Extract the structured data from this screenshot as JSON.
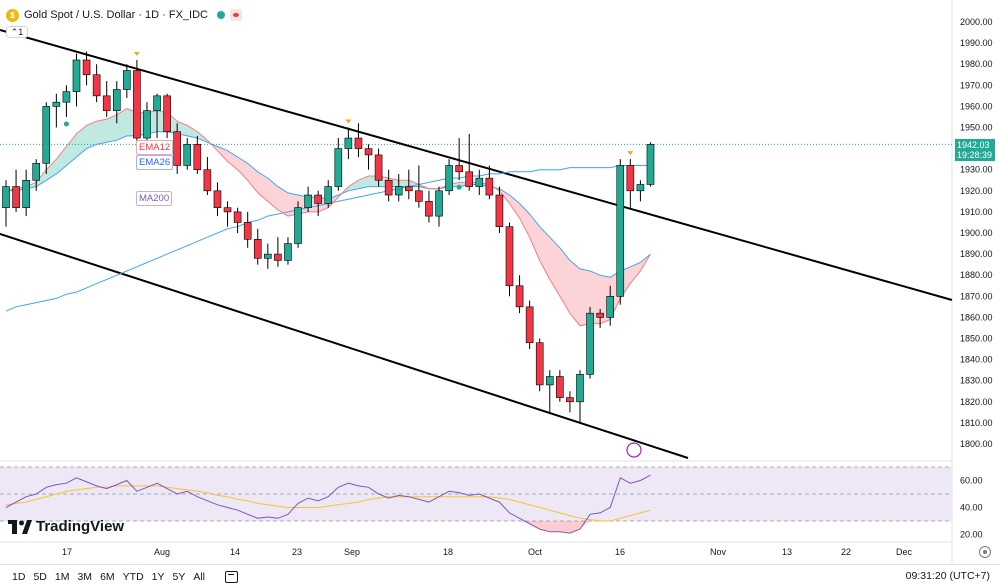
{
  "header": {
    "symbol_title": "Gold Spot / U.S. Dollar · 1D · FX_IDC",
    "collapse_label": "1"
  },
  "studies": {
    "ema12": "EMA12",
    "ema26": "EMA26",
    "ma200": "MA200"
  },
  "colors": {
    "up": "#22ab94",
    "down": "#f23645",
    "ema12": "#f77c80",
    "ema26": "#42a5f5",
    "ma200": "#42a5f5",
    "rsi": "#7e57c2",
    "rsi_ma": "#f7c52b",
    "rsi_band": "#ede7f6"
  },
  "price_tag": {
    "price": "1942.03",
    "countdown": "19:28:39"
  },
  "chart_data": {
    "type": "candlestick",
    "price_axis": {
      "ticks": [
        2000,
        1990,
        1980,
        1970,
        1960,
        1950,
        1940,
        1930,
        1920,
        1910,
        1900,
        1890,
        1880,
        1870,
        1860,
        1850,
        1840,
        1830,
        1820,
        1810,
        1800
      ],
      "labels": [
        "2000.00",
        "1990.00",
        "1980.00",
        "1970.00",
        "1960.00",
        "1950.00",
        "1940.00",
        "1930.00",
        "1920.00",
        "1910.00",
        "1900.00",
        "1890.00",
        "1880.00",
        "1870.00",
        "1860.00",
        "1850.00",
        "1840.00",
        "1830.00",
        "1820.00",
        "1810.00",
        "1800.00"
      ]
    },
    "rsi_axis": {
      "ticks": [
        60,
        40,
        20
      ],
      "labels": [
        "60.00",
        "40.00",
        "20.00"
      ],
      "upper_band": 70,
      "lower_band": 30
    },
    "time_axis": [
      "17",
      "Aug",
      "14",
      "23",
      "Sep",
      "18",
      "Oct",
      "16",
      "Nov",
      "13",
      "22",
      "Dec"
    ],
    "candles": [
      {
        "o": 1912,
        "h": 1925,
        "l": 1903,
        "c": 1922
      },
      {
        "o": 1922,
        "h": 1930,
        "l": 1910,
        "c": 1912
      },
      {
        "o": 1912,
        "h": 1930,
        "l": 1908,
        "c": 1925
      },
      {
        "o": 1925,
        "h": 1935,
        "l": 1920,
        "c": 1933
      },
      {
        "o": 1933,
        "h": 1962,
        "l": 1928,
        "c": 1960
      },
      {
        "o": 1960,
        "h": 1966,
        "l": 1950,
        "c": 1962
      },
      {
        "o": 1962,
        "h": 1970,
        "l": 1955,
        "c": 1967
      },
      {
        "o": 1967,
        "h": 1985,
        "l": 1960,
        "c": 1982
      },
      {
        "o": 1982,
        "h": 1986,
        "l": 1970,
        "c": 1975
      },
      {
        "o": 1975,
        "h": 1980,
        "l": 1962,
        "c": 1965
      },
      {
        "o": 1965,
        "h": 1972,
        "l": 1955,
        "c": 1958
      },
      {
        "o": 1958,
        "h": 1972,
        "l": 1952,
        "c": 1968
      },
      {
        "o": 1968,
        "h": 1980,
        "l": 1964,
        "c": 1977
      },
      {
        "o": 1977,
        "h": 1982,
        "l": 1940,
        "c": 1945
      },
      {
        "o": 1945,
        "h": 1962,
        "l": 1940,
        "c": 1958
      },
      {
        "o": 1958,
        "h": 1966,
        "l": 1945,
        "c": 1965
      },
      {
        "o": 1965,
        "h": 1966,
        "l": 1945,
        "c": 1948
      },
      {
        "o": 1948,
        "h": 1952,
        "l": 1928,
        "c": 1932
      },
      {
        "o": 1932,
        "h": 1945,
        "l": 1930,
        "c": 1942
      },
      {
        "o": 1942,
        "h": 1946,
        "l": 1928,
        "c": 1930
      },
      {
        "o": 1930,
        "h": 1936,
        "l": 1918,
        "c": 1920
      },
      {
        "o": 1920,
        "h": 1924,
        "l": 1908,
        "c": 1912
      },
      {
        "o": 1912,
        "h": 1915,
        "l": 1903,
        "c": 1910
      },
      {
        "o": 1910,
        "h": 1912,
        "l": 1900,
        "c": 1905
      },
      {
        "o": 1905,
        "h": 1910,
        "l": 1893,
        "c": 1897
      },
      {
        "o": 1897,
        "h": 1902,
        "l": 1885,
        "c": 1888
      },
      {
        "o": 1888,
        "h": 1895,
        "l": 1883,
        "c": 1890
      },
      {
        "o": 1890,
        "h": 1898,
        "l": 1884,
        "c": 1887
      },
      {
        "o": 1887,
        "h": 1898,
        "l": 1885,
        "c": 1895
      },
      {
        "o": 1895,
        "h": 1915,
        "l": 1893,
        "c": 1912
      },
      {
        "o": 1912,
        "h": 1922,
        "l": 1910,
        "c": 1918
      },
      {
        "o": 1918,
        "h": 1920,
        "l": 1908,
        "c": 1914
      },
      {
        "o": 1914,
        "h": 1925,
        "l": 1912,
        "c": 1922
      },
      {
        "o": 1922,
        "h": 1945,
        "l": 1920,
        "c": 1940
      },
      {
        "o": 1940,
        "h": 1950,
        "l": 1935,
        "c": 1945
      },
      {
        "o": 1945,
        "h": 1952,
        "l": 1936,
        "c": 1940
      },
      {
        "o": 1940,
        "h": 1942,
        "l": 1930,
        "c": 1937
      },
      {
        "o": 1937,
        "h": 1940,
        "l": 1922,
        "c": 1925
      },
      {
        "o": 1925,
        "h": 1930,
        "l": 1915,
        "c": 1918
      },
      {
        "o": 1918,
        "h": 1928,
        "l": 1915,
        "c": 1922
      },
      {
        "o": 1922,
        "h": 1930,
        "l": 1916,
        "c": 1920
      },
      {
        "o": 1920,
        "h": 1932,
        "l": 1912,
        "c": 1915
      },
      {
        "o": 1915,
        "h": 1920,
        "l": 1905,
        "c": 1908
      },
      {
        "o": 1908,
        "h": 1922,
        "l": 1903,
        "c": 1920
      },
      {
        "o": 1920,
        "h": 1935,
        "l": 1918,
        "c": 1932
      },
      {
        "o": 1932,
        "h": 1945,
        "l": 1925,
        "c": 1929
      },
      {
        "o": 1929,
        "h": 1947,
        "l": 1920,
        "c": 1922
      },
      {
        "o": 1922,
        "h": 1930,
        "l": 1918,
        "c": 1926
      },
      {
        "o": 1926,
        "h": 1932,
        "l": 1916,
        "c": 1918
      },
      {
        "o": 1918,
        "h": 1922,
        "l": 1900,
        "c": 1903
      },
      {
        "o": 1903,
        "h": 1905,
        "l": 1870,
        "c": 1875
      },
      {
        "o": 1875,
        "h": 1880,
        "l": 1862,
        "c": 1865
      },
      {
        "o": 1865,
        "h": 1868,
        "l": 1845,
        "c": 1848
      },
      {
        "o": 1848,
        "h": 1850,
        "l": 1825,
        "c": 1828
      },
      {
        "o": 1828,
        "h": 1835,
        "l": 1815,
        "c": 1832
      },
      {
        "o": 1832,
        "h": 1835,
        "l": 1820,
        "c": 1822
      },
      {
        "o": 1822,
        "h": 1825,
        "l": 1815,
        "c": 1820
      },
      {
        "o": 1820,
        "h": 1835,
        "l": 1810,
        "c": 1833
      },
      {
        "o": 1833,
        "h": 1865,
        "l": 1831,
        "c": 1862
      },
      {
        "o": 1862,
        "h": 1864,
        "l": 1855,
        "c": 1860
      },
      {
        "o": 1860,
        "h": 1875,
        "l": 1856,
        "c": 1870
      },
      {
        "o": 1870,
        "h": 1935,
        "l": 1866,
        "c": 1932
      },
      {
        "o": 1932,
        "h": 1935,
        "l": 1912,
        "c": 1920
      },
      {
        "o": 1920,
        "h": 1925,
        "l": 1915,
        "c": 1923
      },
      {
        "o": 1923,
        "h": 1943,
        "l": 1922,
        "c": 1942
      }
    ],
    "ema12": [
      1920,
      1921,
      1922,
      1924,
      1930,
      1935,
      1941,
      1947,
      1951,
      1953,
      1954,
      1956,
      1959,
      1957,
      1957,
      1958,
      1957,
      1953,
      1951,
      1948,
      1944,
      1939,
      1934,
      1930,
      1925,
      1919,
      1915,
      1911,
      1908,
      1909,
      1910,
      1910,
      1912,
      1917,
      1922,
      1925,
      1927,
      1927,
      1926,
      1925,
      1925,
      1923,
      1921,
      1921,
      1923,
      1924,
      1924,
      1924,
      1923,
      1920,
      1914,
      1907,
      1898,
      1887,
      1878,
      1870,
      1862,
      1856,
      1857,
      1857,
      1859,
      1869,
      1876,
      1882,
      1890
    ],
    "ema26": [
      1920,
      1920,
      1921,
      1922,
      1925,
      1928,
      1932,
      1936,
      1940,
      1942,
      1943,
      1944,
      1946,
      1946,
      1947,
      1948,
      1948,
      1947,
      1946,
      1945,
      1943,
      1941,
      1939,
      1936,
      1933,
      1929,
      1926,
      1922,
      1919,
      1918,
      1917,
      1917,
      1916,
      1918,
      1920,
      1921,
      1922,
      1922,
      1922,
      1922,
      1922,
      1922,
      1921,
      1921,
      1922,
      1922,
      1923,
      1923,
      1922,
      1921,
      1918,
      1914,
      1909,
      1903,
      1898,
      1893,
      1887,
      1883,
      1882,
      1880,
      1879,
      1882,
      1884,
      1886,
      1890
    ],
    "ma200": [
      1863,
      1865,
      1866,
      1867,
      1868,
      1869,
      1871,
      1872,
      1874,
      1876,
      1878,
      1880,
      1882,
      1884,
      1886,
      1888,
      1890,
      1892,
      1894,
      1896,
      1898,
      1900,
      1902,
      1903,
      1905,
      1906,
      1908,
      1909,
      1910,
      1911,
      1912,
      1913,
      1914,
      1915,
      1916,
      1917,
      1918,
      1919,
      1920,
      1921,
      1922,
      1923,
      1924,
      1925,
      1926,
      1926,
      1927,
      1927,
      1928,
      1928,
      1929,
      1929,
      1929,
      1930,
      1930,
      1930,
      1931,
      1931,
      1931,
      1931,
      1931,
      1932,
      1932,
      1932,
      1932
    ],
    "rsi": [
      40,
      44,
      48,
      50,
      55,
      57,
      58,
      62,
      59,
      56,
      54,
      57,
      60,
      52,
      55,
      58,
      54,
      50,
      52,
      48,
      45,
      42,
      40,
      38,
      35,
      32,
      33,
      32,
      35,
      43,
      47,
      45,
      48,
      55,
      58,
      56,
      55,
      50,
      47,
      49,
      48,
      46,
      44,
      48,
      52,
      51,
      49,
      50,
      47,
      44,
      36,
      32,
      28,
      24,
      22,
      22,
      21,
      24,
      35,
      36,
      40,
      62,
      58,
      60,
      64
    ],
    "rsi_ma": [
      42,
      43,
      44,
      46,
      48,
      50,
      52,
      53,
      54,
      55,
      55,
      56,
      56,
      56,
      56,
      56,
      55,
      54,
      53,
      52,
      51,
      49,
      48,
      46,
      45,
      43,
      42,
      41,
      40,
      40,
      40,
      40,
      41,
      42,
      43,
      44,
      46,
      47,
      48,
      48,
      48,
      48,
      48,
      48,
      48,
      48,
      48,
      48,
      48,
      47,
      46,
      44,
      42,
      40,
      38,
      36,
      34,
      32,
      31,
      30,
      30,
      32,
      34,
      36,
      38
    ]
  },
  "toolbar": {
    "ranges": [
      "1D",
      "5D",
      "1M",
      "3M",
      "6M",
      "YTD",
      "1Y",
      "5Y",
      "All"
    ],
    "clock": "09:31:20 (UTC+7)"
  },
  "branding": {
    "logo_text": "TradingView"
  }
}
